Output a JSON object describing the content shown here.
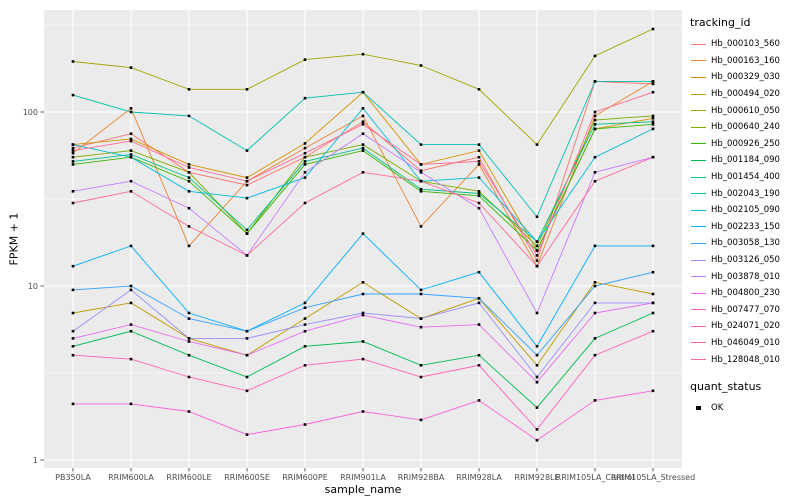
{
  "figure": {
    "background": "#FFFFFF",
    "panel_background": "#EBEBEB",
    "grid_color": "#FFFFFF",
    "tick_text_color": "#4D4D4D",
    "axis_tick_color": "#333333",
    "point_color": "#000000"
  },
  "axes": {
    "x_title": "sample_name",
    "y_title": "FPKM + 1",
    "y_ticks": [
      "1",
      "10",
      "100"
    ]
  },
  "legend": {
    "tracking_title": "tracking_id",
    "quant_title": "quant_status",
    "quant_items": [
      {
        "label": "OK"
      }
    ]
  },
  "chart_data": {
    "type": "line",
    "y_scale": "log10",
    "ylim": [
      0.9,
      385
    ],
    "grid": true,
    "legend_position": "right",
    "point_shape": "square",
    "title": "",
    "xlabel": "sample_name",
    "ylabel": "FPKM + 1",
    "x_categories": [
      "PB350LA",
      "RRIM600LA",
      "RRIM600LE",
      "RRIM600SE",
      "RRIM600PE",
      "RRIM901LA",
      "RRIM928BA",
      "RRIM928LA",
      "RRIM928LE",
      "RRIM105LA_Control",
      "RRIM105LA_Stressed"
    ],
    "y_minor_gridlines": [
      3.162,
      31.62,
      316.2
    ],
    "series": [
      {
        "name": "Hb_000103_560",
        "color": "#F8766D",
        "values": [
          62,
          75,
          45,
          38,
          55,
          88,
          46,
          55,
          14,
          150,
          145
        ]
      },
      {
        "name": "Hb_000163_160",
        "color": "#EA8331",
        "values": [
          58,
          105,
          17,
          40,
          62,
          95,
          22,
          50,
          13,
          95,
          150
        ]
      },
      {
        "name": "Hb_000329_030",
        "color": "#D89000",
        "values": [
          65,
          70,
          50,
          42,
          66,
          130,
          50,
          60,
          16,
          80,
          92
        ]
      },
      {
        "name": "Hb_000494_020",
        "color": "#C09B00",
        "values": [
          7,
          8,
          5,
          4,
          6.5,
          10.5,
          6.5,
          8.5,
          3.5,
          10.5,
          9
        ]
      },
      {
        "name": "Hb_000610_050",
        "color": "#A3A500",
        "values": [
          195,
          180,
          135,
          135,
          200,
          215,
          185,
          135,
          65,
          210,
          300
        ]
      },
      {
        "name": "Hb_000640_240",
        "color": "#7CAE00",
        "values": [
          55,
          60,
          45,
          20,
          55,
          65,
          40,
          35,
          17,
          90,
          95
        ]
      },
      {
        "name": "Hb_000926_250",
        "color": "#39B600",
        "values": [
          50,
          55,
          40,
          20,
          50,
          60,
          35,
          33,
          16,
          80,
          85
        ]
      },
      {
        "name": "Hb_001184_090",
        "color": "#00BB4E",
        "values": [
          4.5,
          5.5,
          4,
          3,
          4.5,
          4.8,
          3.5,
          4,
          2,
          5,
          7
        ]
      },
      {
        "name": "Hb_001454_400",
        "color": "#00C087",
        "values": [
          52,
          57,
          42,
          21,
          52,
          62,
          36,
          34,
          18,
          85,
          88
        ]
      },
      {
        "name": "Hb_002043_190",
        "color": "#00C0AF",
        "values": [
          125,
          100,
          95,
          60,
          120,
          130,
          65,
          65,
          25,
          150,
          150
        ]
      },
      {
        "name": "Hb_002105_090",
        "color": "#00BCD8",
        "values": [
          65,
          55,
          35,
          32,
          42,
          105,
          40,
          42,
          18,
          55,
          80
        ]
      },
      {
        "name": "Hb_002233_150",
        "color": "#00B0F6",
        "values": [
          13,
          17,
          7,
          5.5,
          8,
          20,
          9.5,
          12,
          4.5,
          17,
          17
        ]
      },
      {
        "name": "Hb_003058_130",
        "color": "#35A2FF",
        "values": [
          9.5,
          10,
          6.5,
          5.5,
          7.5,
          9,
          9,
          8.5,
          4,
          10,
          12
        ]
      },
      {
        "name": "Hb_003126_050",
        "color": "#9590FF",
        "values": [
          5.5,
          9.5,
          5,
          5,
          6,
          7,
          6.5,
          8,
          3,
          8,
          8
        ]
      },
      {
        "name": "Hb_003878_010",
        "color": "#C77CFF",
        "values": [
          35,
          40,
          28,
          15,
          45,
          75,
          45,
          28,
          7,
          45,
          55
        ]
      },
      {
        "name": "Hb_004800_230",
        "color": "#E76BF3",
        "values": [
          5,
          6,
          4.8,
          4,
          5.5,
          6.8,
          5.8,
          6,
          2.8,
          7,
          8
        ]
      },
      {
        "name": "Hb_007477_070",
        "color": "#FA62DB",
        "values": [
          2.1,
          2.1,
          1.9,
          1.4,
          1.6,
          1.9,
          1.7,
          2.2,
          1.3,
          2.2,
          2.5
        ]
      },
      {
        "name": "Hb_024071_020",
        "color": "#FF62BC",
        "values": [
          4,
          3.8,
          3,
          2.5,
          3.5,
          3.8,
          3,
          3.5,
          1.5,
          4,
          5.5
        ]
      },
      {
        "name": "Hb_046049_010",
        "color": "#FF6A98",
        "values": [
          30,
          35,
          22,
          15,
          30,
          45,
          40,
          30,
          13,
          40,
          55
        ]
      },
      {
        "name": "Hb_128048_010",
        "color": "#FF6C91",
        "values": [
          60,
          68,
          48,
          40,
          58,
          85,
          50,
          52,
          15,
          100,
          130
        ]
      }
    ]
  }
}
